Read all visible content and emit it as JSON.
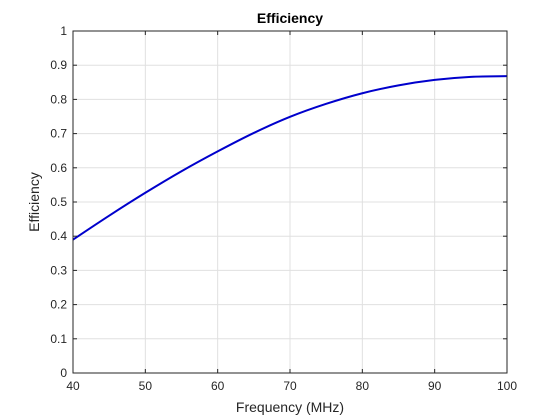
{
  "chart_data": {
    "type": "line",
    "title": "Efficiency",
    "xlabel": "Frequency (MHz)",
    "ylabel": "Efficiency",
    "xlim": [
      40,
      100
    ],
    "ylim": [
      0,
      1
    ],
    "xticks": [
      "40",
      "50",
      "60",
      "70",
      "80",
      "90",
      "100"
    ],
    "yticks": [
      "0",
      "0.1",
      "0.2",
      "0.3",
      "0.4",
      "0.5",
      "0.6",
      "0.7",
      "0.8",
      "0.9",
      "1"
    ],
    "grid": true,
    "series": [
      {
        "color": "#0000cc",
        "x": [
          40,
          45,
          50,
          55,
          60,
          65,
          70,
          75,
          80,
          85,
          90,
          95,
          100
        ],
        "y": [
          0.39,
          0.46,
          0.527,
          0.59,
          0.648,
          0.702,
          0.749,
          0.787,
          0.818,
          0.841,
          0.857,
          0.866,
          0.868
        ]
      }
    ]
  }
}
